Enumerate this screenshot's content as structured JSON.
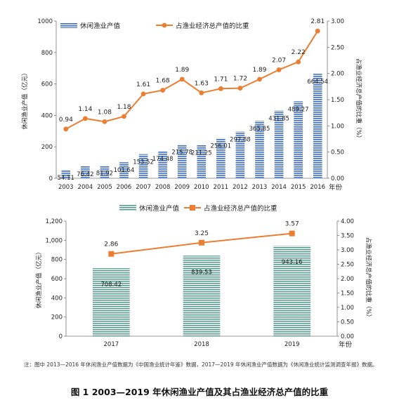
{
  "chart_data": [
    {
      "type": "bar",
      "x": [
        "2003",
        "2004",
        "2005",
        "2006",
        "2007",
        "2008",
        "2009",
        "2010",
        "2011",
        "2012",
        "2013",
        "2014",
        "2015",
        "2016"
      ],
      "xlabel": "年份",
      "series": [
        {
          "name": "休闲渔业产值",
          "kind": "bar",
          "axis": "left",
          "values": [
            54.11,
            76.42,
            81.92,
            101.64,
            153.52,
            174.48,
            215.78,
            211.25,
            256.01,
            297.88,
            365.85,
            431.85,
            489.27,
            664.54
          ],
          "labels": [
            "54.11",
            "76.42",
            "81.92",
            "101.64",
            "153.52",
            "174.48",
            "215.78",
            "211.25",
            "256.01",
            "297.88",
            "365.85",
            "431.85",
            "489.27",
            "664.54"
          ]
        },
        {
          "name": "占渔业经济总产值的比重",
          "kind": "line",
          "axis": "right",
          "values": [
            0.94,
            1.14,
            1.08,
            1.18,
            1.61,
            1.68,
            1.89,
            1.63,
            1.71,
            1.72,
            1.89,
            2.07,
            2.22,
            2.81
          ],
          "labels": [
            "0.94",
            "1.14",
            "1.08",
            "1.18",
            "1.61",
            "1.68",
            "1.89",
            "1.63",
            "1.71",
            "1.72",
            "1.89",
            "2.07",
            "2.22",
            "2.81"
          ]
        }
      ],
      "ylabel_left": "休闲渔业产值（亿元）",
      "ylabel_right": "占渔业经济总产值的比重（%）",
      "ylim_left": [
        0,
        1000
      ],
      "yticks_left": [
        "0",
        "200",
        "400",
        "600",
        "800",
        "1000"
      ],
      "ylim_right": [
        0,
        3
      ],
      "yticks_right": [
        "0.00",
        "0.50",
        "1.00",
        "1.50",
        "2.00",
        "2.50",
        "3.00"
      ],
      "legend_position": "top",
      "grid": false,
      "colors": {
        "bar": "#4472c4",
        "line": "#ed7d31"
      }
    },
    {
      "type": "bar",
      "x": [
        "2017",
        "2018",
        "2019"
      ],
      "xlabel": "年份",
      "series": [
        {
          "name": "休闲渔业产值",
          "kind": "bar",
          "axis": "left",
          "values": [
            708.42,
            839.53,
            943.16
          ],
          "labels": [
            "708.42",
            "839.53",
            "943.16"
          ]
        },
        {
          "name": "占渔业经济总产值的比重",
          "kind": "line",
          "axis": "right",
          "values": [
            2.86,
            3.25,
            3.57
          ],
          "labels": [
            "2.86",
            "3.25",
            "3.57"
          ]
        }
      ],
      "ylabel_left": "休闲渔业产值（亿元）",
      "ylabel_right": "占渔业经济总产值的比重（%）",
      "ylim_left": [
        0,
        1200
      ],
      "yticks_left": [
        "0",
        "200",
        "400",
        "600",
        "800",
        "1,000",
        "1,200"
      ],
      "ylim_right": [
        0,
        4
      ],
      "yticks_right": [
        "0.00",
        "0.50",
        "1.00",
        "1.50",
        "2.00",
        "2.50",
        "3.00",
        "3.50",
        "4.00"
      ],
      "legend_position": "top",
      "grid": false,
      "colors": {
        "bar": "#4e9a8a",
        "line": "#ed7d31"
      }
    }
  ],
  "note": "注：图中 2013—2016 年休闲渔业产值数据为《中国渔业统计年鉴》数据，2017—2019 年休闲渔业产值数据为《休闲渔业统计监测调查年报》数据。",
  "caption": "图 1 2003—2019 年休闲渔业产值及其占渔业经济总产值的比重"
}
